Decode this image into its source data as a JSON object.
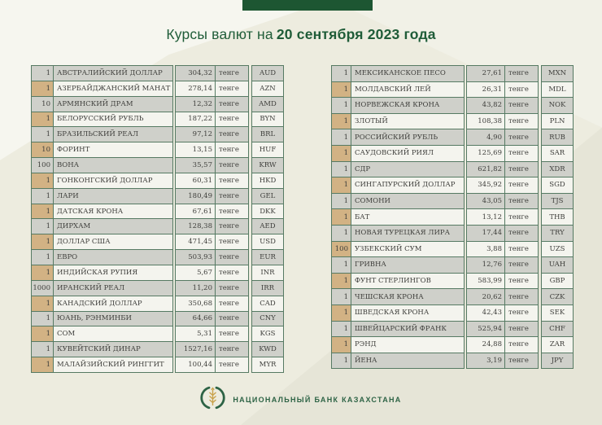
{
  "title": {
    "prefix": "Курсы валют на",
    "date": "20 сентября 2023 года"
  },
  "unit_label": "тенге",
  "tables": {
    "left": {
      "rows": [
        {
          "qty": "1",
          "name": "АВСТРАЛИЙСКИЙ ДОЛЛАР",
          "rate": "304,32",
          "code": "AUD"
        },
        {
          "qty": "1",
          "name": "АЗЕРБАЙДЖАНСКИЙ МАНАТ",
          "rate": "278,14",
          "code": "AZN"
        },
        {
          "qty": "10",
          "name": "АРМЯНСКИЙ ДРАМ",
          "rate": "12,32",
          "code": "AMD"
        },
        {
          "qty": "1",
          "name": "БЕЛОРУССКИЙ РУБЛЬ",
          "rate": "187,22",
          "code": "BYN"
        },
        {
          "qty": "1",
          "name": "БРАЗИЛЬСКИЙ РЕАЛ",
          "rate": "97,12",
          "code": "BRL"
        },
        {
          "qty": "10",
          "name": "ФОРИНТ",
          "rate": "13,15",
          "code": "HUF"
        },
        {
          "qty": "100",
          "name": "ВОНА",
          "rate": "35,57",
          "code": "KRW"
        },
        {
          "qty": "1",
          "name": "ГОНКОНГСКИЙ ДОЛЛАР",
          "rate": "60,31",
          "code": "HKD"
        },
        {
          "qty": "1",
          "name": "ЛАРИ",
          "rate": "180,49",
          "code": "GEL"
        },
        {
          "qty": "1",
          "name": "ДАТСКАЯ КРОНА",
          "rate": "67,61",
          "code": "DKK"
        },
        {
          "qty": "1",
          "name": "ДИРХАМ",
          "rate": "128,38",
          "code": "AED"
        },
        {
          "qty": "1",
          "name": "ДОЛЛАР США",
          "rate": "471,45",
          "code": "USD"
        },
        {
          "qty": "1",
          "name": "ЕВРО",
          "rate": "503,93",
          "code": "EUR"
        },
        {
          "qty": "1",
          "name": "ИНДИЙСКАЯ РУПИЯ",
          "rate": "5,67",
          "code": "INR"
        },
        {
          "qty": "1000",
          "name": "ИРАНСКИЙ РЕАЛ",
          "rate": "11,20",
          "code": "IRR"
        },
        {
          "qty": "1",
          "name": "КАНАДСКИЙ ДОЛЛАР",
          "rate": "350,68",
          "code": "CAD"
        },
        {
          "qty": "1",
          "name": "ЮАНЬ, РЭНМИНБИ",
          "rate": "64,66",
          "code": "CNY"
        },
        {
          "qty": "1",
          "name": "СОМ",
          "rate": "5,31",
          "code": "KGS"
        },
        {
          "qty": "1",
          "name": "КУВЕЙТСКИЙ ДИНАР",
          "rate": "1527,16",
          "code": "KWD"
        },
        {
          "qty": "1",
          "name": "МАЛАЙЗИЙСКИЙ РИНГГИТ",
          "rate": "100,44",
          "code": "MYR"
        }
      ]
    },
    "right": {
      "rows": [
        {
          "qty": "1",
          "name": "МЕКСИКАНСКОЕ ПЕСО",
          "rate": "27,61",
          "code": "MXN"
        },
        {
          "qty": "1",
          "name": "МОЛДАВСКИЙ ЛЕЙ",
          "rate": "26,31",
          "code": "MDL"
        },
        {
          "qty": "1",
          "name": "НОРВЕЖСКАЯ КРОНА",
          "rate": "43,82",
          "code": "NOK"
        },
        {
          "qty": "1",
          "name": "ЗЛОТЫЙ",
          "rate": "108,38",
          "code": "PLN"
        },
        {
          "qty": "1",
          "name": "РОССИЙСКИЙ РУБЛЬ",
          "rate": "4,90",
          "code": "RUB"
        },
        {
          "qty": "1",
          "name": "САУДОВСКИЙ РИЯЛ",
          "rate": "125,69",
          "code": "SAR"
        },
        {
          "qty": "1",
          "name": "СДР",
          "rate": "621,82",
          "code": "XDR"
        },
        {
          "qty": "1",
          "name": "СИНГАПУРСКИЙ ДОЛЛАР",
          "rate": "345,92",
          "code": "SGD"
        },
        {
          "qty": "1",
          "name": "СОМОНИ",
          "rate": "43,05",
          "code": "TJS"
        },
        {
          "qty": "1",
          "name": "БАТ",
          "rate": "13,12",
          "code": "THB"
        },
        {
          "qty": "1",
          "name": "НОВАЯ ТУРЕЦКАЯ ЛИРА",
          "rate": "17,44",
          "code": "TRY"
        },
        {
          "qty": "100",
          "name": "УЗБЕКСКИЙ СУМ",
          "rate": "3,88",
          "code": "UZS"
        },
        {
          "qty": "1",
          "name": "ГРИВНА",
          "rate": "12,76",
          "code": "UAH"
        },
        {
          "qty": "1",
          "name": "ФУНТ СТЕРЛИНГОВ",
          "rate": "583,99",
          "code": "GBP"
        },
        {
          "qty": "1",
          "name": "ЧЕШСКАЯ КРОНА",
          "rate": "20,62",
          "code": "CZK"
        },
        {
          "qty": "1",
          "name": "ШВЕДСКАЯ КРОНА",
          "rate": "42,43",
          "code": "SEK"
        },
        {
          "qty": "1",
          "name": "ШВЕЙЦАРСКИЙ ФРАНК",
          "rate": "525,94",
          "code": "CHF"
        },
        {
          "qty": "1",
          "name": "РЭНД",
          "rate": "24,88",
          "code": "ZAR"
        },
        {
          "qty": "1",
          "name": "ЙЕНА",
          "rate": "3,19",
          "code": "JPY"
        }
      ]
    }
  },
  "footer": {
    "bank_name": "НАЦИОНАЛЬНЫЙ БАНК КАЗАХСТАНА"
  },
  "colors": {
    "background": "#edecdf",
    "accent_green": "#1d5632",
    "header_text": "#1f5c38",
    "table_border": "#567a63",
    "row_gray": "#cfd0ca",
    "row_light": "#f4f4ee",
    "qty_highlight": "#d2b284",
    "cell_text": "#3f3f3c",
    "footer_text": "#2d6345",
    "emblem_gold": "#c9a24b"
  }
}
